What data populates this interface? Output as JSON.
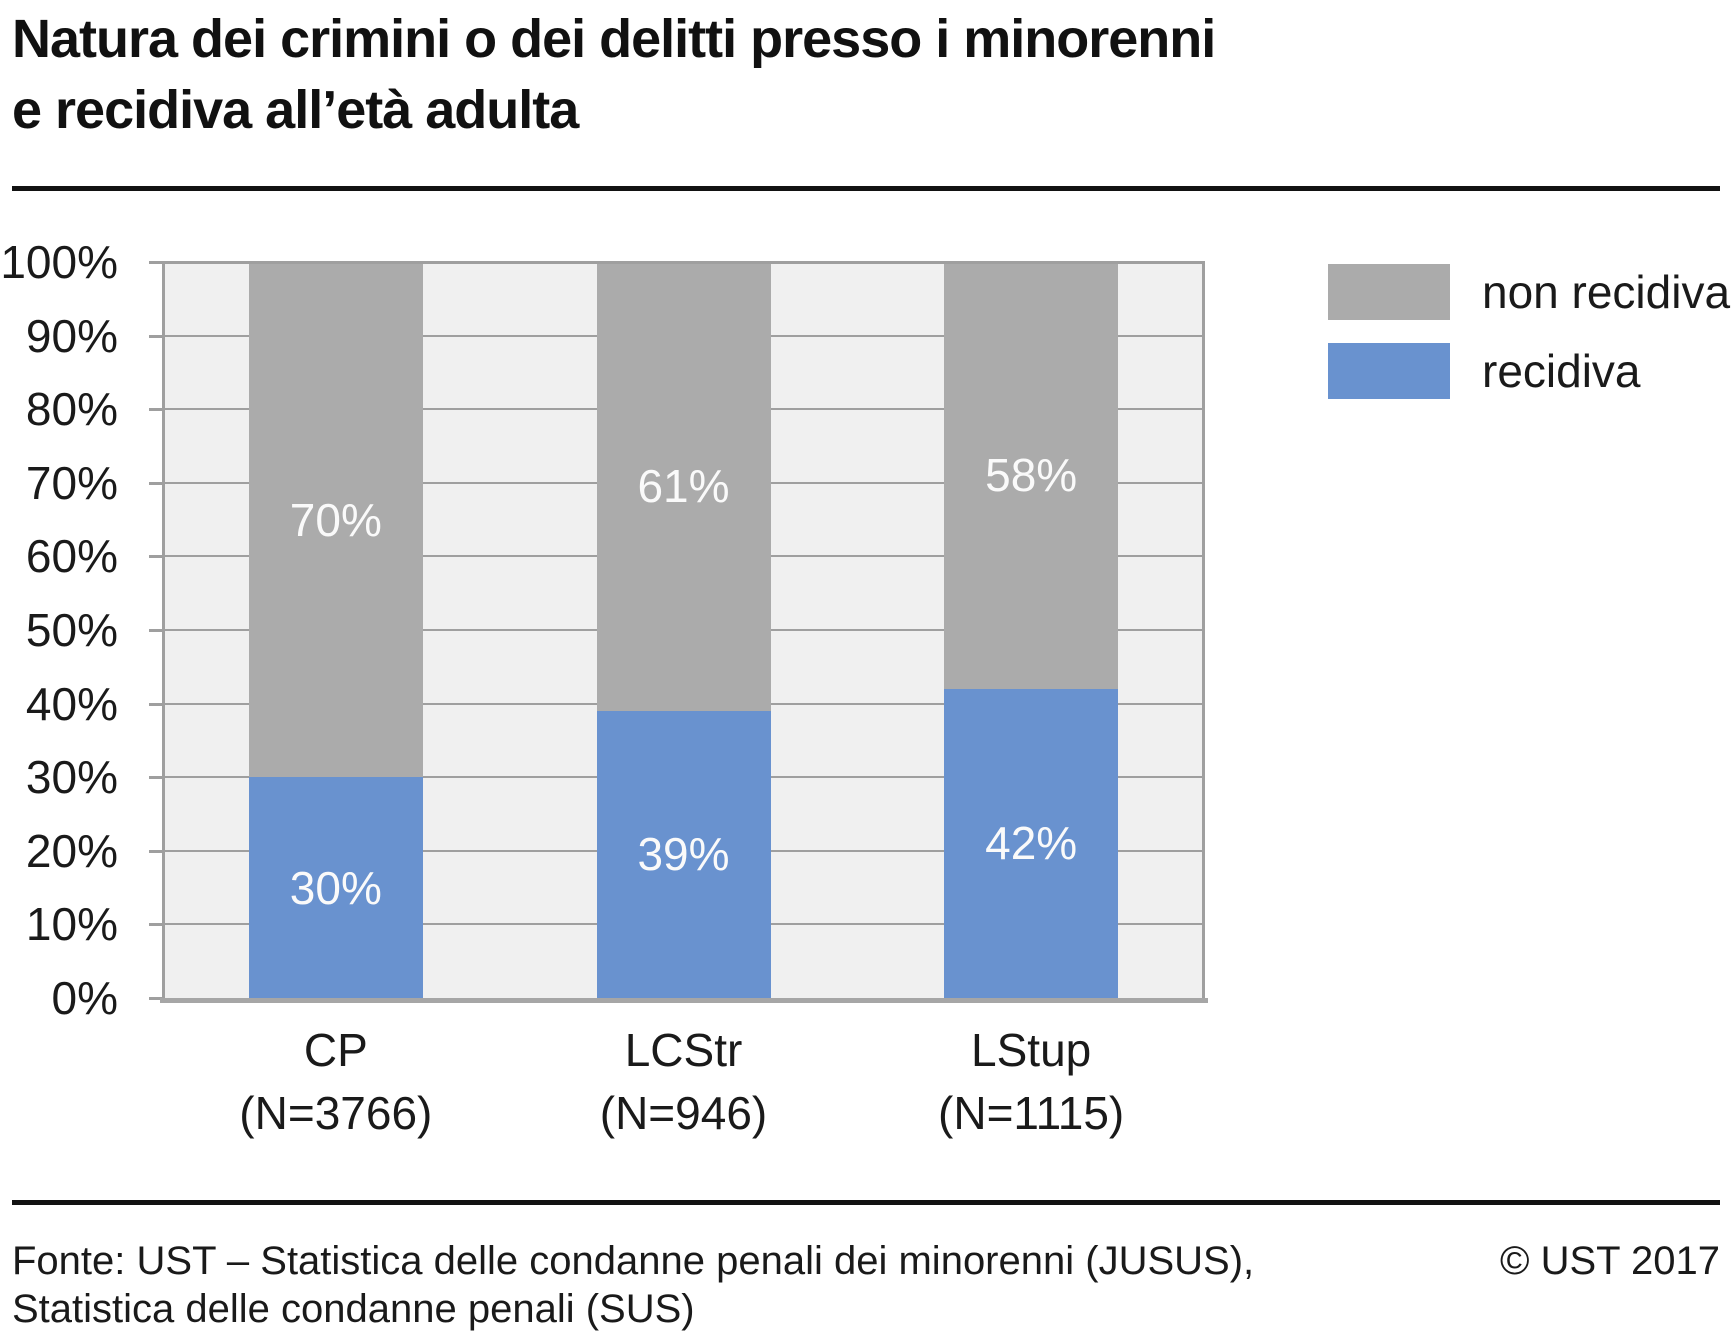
{
  "header": {
    "title_line1": "Natura dei crimini o dei delitti presso i minorenni",
    "title_line2": "e recidiva all’età adulta"
  },
  "chart_data": {
    "type": "bar",
    "stacked": true,
    "orientation": "vertical",
    "categories": [
      "CP",
      "LCStr",
      "LStup"
    ],
    "category_sublabels": [
      "(N=3766)",
      "(N=946)",
      "(N=1115)"
    ],
    "series": [
      {
        "name": "recidiva",
        "color": "#6992cf",
        "values": [
          30,
          39,
          42
        ]
      },
      {
        "name": "non recidiva",
        "color": "#ababab",
        "values": [
          70,
          61,
          58
        ]
      }
    ],
    "legend": [
      {
        "label": "non recidiva",
        "color": "#ababab"
      },
      {
        "label": "recidiva",
        "color": "#6992cf"
      }
    ],
    "value_suffix": "%",
    "ylim": [
      0,
      100
    ],
    "ytick_step": 10,
    "ytick_suffix": "%",
    "grid": "horizontal",
    "legend_position": "top-right",
    "plot_background": "#f0f0f0",
    "gridline_color": "#9f9f9f",
    "bar_label_color": "#fafafa"
  },
  "footer": {
    "source_line1": "Fonte: UST – Statistica delle condanne penali dei minorenni (JUSUS),",
    "source_line2": "Statistica delle condanne penali (SUS)",
    "copyright": "© UST 2017"
  }
}
